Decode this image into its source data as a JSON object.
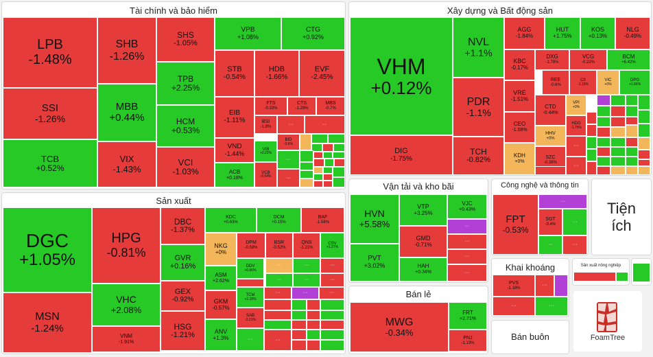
{
  "colors": {
    "red": "#e53b3b",
    "green": "#26c926",
    "orange": "#f4b65a",
    "purple": "#b23fd6",
    "more_label": "···"
  },
  "sectors": [
    {
      "id": "tai-chinh",
      "title": "Tài chính và bảo hiểm"
    },
    {
      "id": "xay-dung",
      "title": "Xây dựng và Bất động sản"
    },
    {
      "id": "san-xuat",
      "title": "Sản xuất"
    },
    {
      "id": "van-tai",
      "title": "Vận tải và kho bãi"
    },
    {
      "id": "cong-nghe",
      "title": "Công nghệ và thông tin"
    },
    {
      "id": "tien-ich",
      "title": "Tiện ích"
    },
    {
      "id": "khai-khoang",
      "title": "Khai khoáng"
    },
    {
      "id": "ban-le",
      "title": "Bán lẻ"
    },
    {
      "id": "ban-buon",
      "title": "Bán buôn"
    },
    {
      "id": "nong-nghiep",
      "title": "Sản xuất nông nghiệp"
    }
  ],
  "chart_data": {
    "type": "treemap",
    "tiles": [
      {
        "t": "LPB",
        "c": "-1.48%",
        "k": "r"
      },
      {
        "t": "SHB",
        "c": "-1.26%",
        "k": "r"
      },
      {
        "t": "SHS",
        "c": "-1.05%",
        "k": "r"
      },
      {
        "t": "VPB",
        "c": "+1.08%",
        "k": "g"
      },
      {
        "t": "CTG",
        "c": "+0.92%",
        "k": "g"
      },
      {
        "t": "STB",
        "c": "-0.54%",
        "k": "r"
      },
      {
        "t": "HDB",
        "c": "-1.66%",
        "k": "r"
      },
      {
        "t": "EVF",
        "c": "-2.45%",
        "k": "r"
      },
      {
        "t": "SSI",
        "c": "-1.26%",
        "k": "r"
      },
      {
        "t": "MBB",
        "c": "+0.44%",
        "k": "g"
      },
      {
        "t": "TPB",
        "c": "+2.25%",
        "k": "g"
      },
      {
        "t": "EIB",
        "c": "-1.11%",
        "k": "r"
      },
      {
        "t": "FTS",
        "c": "-0.33%",
        "k": "r"
      },
      {
        "t": "CTS",
        "c": "-1.28%",
        "k": "r"
      },
      {
        "t": "MBS",
        "c": "-0.7%",
        "k": "r"
      },
      {
        "t": "HCM",
        "c": "+0.53%",
        "k": "g"
      },
      {
        "t": "BSI",
        "c": "-1.8%",
        "k": "r"
      },
      {
        "t": "TCB",
        "c": "+0.52%",
        "k": "g"
      },
      {
        "t": "VIX",
        "c": "-1.43%",
        "k": "r"
      },
      {
        "t": "VND",
        "c": "-1.44%",
        "k": "r"
      },
      {
        "t": "BID",
        "c": "-0.6%",
        "k": "r"
      },
      {
        "t": "VCI",
        "c": "-1.03%",
        "k": "r"
      },
      {
        "t": "VIB",
        "c": "+0.23%",
        "k": "g"
      },
      {
        "t": "ACB",
        "c": "+0.18%",
        "k": "g"
      },
      {
        "t": "VCB",
        "c": "-0.64%",
        "k": "r"
      },
      {
        "t": "VHM",
        "c": "+0.12%",
        "k": "g"
      },
      {
        "t": "NVL",
        "c": "+1.1%",
        "k": "g"
      },
      {
        "t": "AGG",
        "c": "-1.84%",
        "k": "r"
      },
      {
        "t": "HUT",
        "c": "+1.75%",
        "k": "g"
      },
      {
        "t": "KOS",
        "c": "+0.13%",
        "k": "g"
      },
      {
        "t": "NLG",
        "c": "-0.49%",
        "k": "r"
      },
      {
        "t": "KBC",
        "c": "-0.17%",
        "k": "r"
      },
      {
        "t": "DXG",
        "c": "-1.78%",
        "k": "r"
      },
      {
        "t": "VCG",
        "c": "-0.22%",
        "k": "r"
      },
      {
        "t": "BCM",
        "c": "+6.42%",
        "k": "g"
      },
      {
        "t": "REE",
        "c": "-0.6%",
        "k": "r"
      },
      {
        "t": "CII",
        "c": "-1.15%",
        "k": "r"
      },
      {
        "t": "VIC",
        "c": "+0%",
        "k": "o"
      },
      {
        "t": "DPG",
        "c": "+1.65%",
        "k": "g"
      },
      {
        "t": "PDR",
        "c": "-1.1%",
        "k": "r"
      },
      {
        "t": "VRE",
        "c": "-1.51%",
        "k": "r"
      },
      {
        "t": "VPI",
        "c": "+0%",
        "k": "o"
      },
      {
        "t": "CTD",
        "c": "-0.44%",
        "k": "r"
      },
      {
        "t": "CEO",
        "c": "-1.08%",
        "k": "r"
      },
      {
        "t": "HHV",
        "c": "+0%",
        "k": "o"
      },
      {
        "t": "DIG",
        "c": "-1.75%",
        "k": "r"
      },
      {
        "t": "TCH",
        "c": "-0.82%",
        "k": "r"
      },
      {
        "t": "KDH",
        "c": "+0%",
        "k": "o"
      },
      {
        "t": "SZC",
        "c": "-0.38%",
        "k": "r"
      },
      {
        "t": "HDG",
        "c": "-1.75%",
        "k": "r"
      },
      {
        "t": "DGC",
        "c": "+1.05%",
        "k": "g"
      },
      {
        "t": "HPG",
        "c": "-0.81%",
        "k": "r"
      },
      {
        "t": "DBC",
        "c": "-1.37%",
        "k": "r"
      },
      {
        "t": "KDC",
        "c": "+0.63%",
        "k": "g"
      },
      {
        "t": "DCM",
        "c": "+0.15%",
        "k": "g"
      },
      {
        "t": "BAF",
        "c": "-1.58%",
        "k": "r"
      },
      {
        "t": "NKG",
        "c": "+0%",
        "k": "o"
      },
      {
        "t": "DPM",
        "c": "-0.59%",
        "k": "r"
      },
      {
        "t": "BSR",
        "c": "-0.52%",
        "k": "r"
      },
      {
        "t": "QNS",
        "c": "-1.21%",
        "k": "r"
      },
      {
        "t": "CSV",
        "c": "+1.27%",
        "k": "g"
      },
      {
        "t": "GVR",
        "c": "+0.16%",
        "k": "g"
      },
      {
        "t": "DDV",
        "c": "+0.66%",
        "k": "g"
      },
      {
        "t": "ASM",
        "c": "+2.62%",
        "k": "g"
      },
      {
        "t": "MSN",
        "c": "-1.24%",
        "k": "r"
      },
      {
        "t": "VHC",
        "c": "+2.08%",
        "k": "g"
      },
      {
        "t": "GEX",
        "c": "-0.92%",
        "k": "r"
      },
      {
        "t": "GKM",
        "c": "-0.57%",
        "k": "r"
      },
      {
        "t": "TCM",
        "c": "+2.18%",
        "k": "g"
      },
      {
        "t": "SAB",
        "c": "-2.21%",
        "k": "r"
      },
      {
        "t": "VNM",
        "c": "-1.91%",
        "k": "r"
      },
      {
        "t": "HSG",
        "c": "-1.21%",
        "k": "r"
      },
      {
        "t": "ANV",
        "c": "+1.3%",
        "k": "g"
      },
      {
        "t": "HVN",
        "c": "+5.58%",
        "k": "g"
      },
      {
        "t": "VTP",
        "c": "+3.25%",
        "k": "g"
      },
      {
        "t": "VJC",
        "c": "+0.43%",
        "k": "g"
      },
      {
        "t": "GMD",
        "c": "-0.71%",
        "k": "r"
      },
      {
        "t": "PVT",
        "c": "+3.02%",
        "k": "g"
      },
      {
        "t": "HAH",
        "c": "+0.34%",
        "k": "g"
      },
      {
        "t": "FPT",
        "c": "-0.53%",
        "k": "r"
      },
      {
        "t": "SGT",
        "c": "-0.4%",
        "k": "r"
      },
      {
        "t": "PVS",
        "c": "-1.18%",
        "k": "r"
      },
      {
        "t": "MWG",
        "c": "-0.34%",
        "k": "r"
      },
      {
        "t": "FRT",
        "c": "+2.71%",
        "k": "g"
      },
      {
        "t": "PNJ",
        "c": "-1.13%",
        "k": "r"
      }
    ],
    "unlabeled_tiles": "r r o g g g r g g r g g r g r g r g g o o g r g r r g g p g g g g r g g r r g r r r o o g g g g r o r r g r r g g r g g g r r o o o r r r o g r g g r r p r r g r g r g r g g r r r g r r g g r r g p r r r p g g r r p r g r g g r r r"
  },
  "logo_text": "FoamTree"
}
